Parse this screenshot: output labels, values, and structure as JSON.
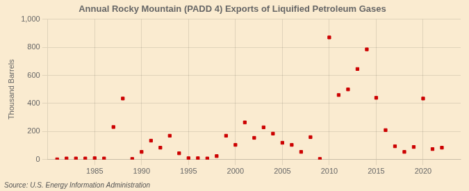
{
  "chart_data": {
    "type": "scatter",
    "title": "Annual Rocky Mountain (PADD 4) Exports of Liquified Petroleum Gases",
    "ylabel": "Thousand Barrels",
    "annotations": [
      "Source: U.S. Energy Information Administration"
    ],
    "x": [
      1981,
      1982,
      1983,
      1984,
      1985,
      1986,
      1987,
      1988,
      1989,
      1990,
      1991,
      1992,
      1993,
      1994,
      1995,
      1996,
      1997,
      1998,
      1999,
      2000,
      2001,
      2002,
      2003,
      2004,
      2005,
      2006,
      2007,
      2008,
      2009,
      2010,
      2011,
      2012,
      2013,
      2014,
      2015,
      2016,
      2017,
      2018,
      2019,
      2020,
      2021,
      2022
    ],
    "values": [
      2,
      8,
      8,
      8,
      10,
      8,
      232,
      435,
      5,
      55,
      135,
      85,
      170,
      45,
      10,
      10,
      8,
      25,
      170,
      105,
      265,
      155,
      230,
      185,
      120,
      105,
      55,
      160,
      5,
      870,
      460,
      500,
      645,
      785,
      440,
      210,
      95,
      55,
      90,
      435,
      75,
      85
    ],
    "color": "#cc0000",
    "marker": "square",
    "xlim": [
      1980,
      2024
    ],
    "xticks": [
      1985,
      1990,
      1995,
      2000,
      2005,
      2010,
      2015,
      2020
    ],
    "ylim": [
      0,
      1000
    ],
    "yticks": [
      0,
      200,
      400,
      600,
      800,
      {
        "value": 1000,
        "label": "1,000"
      }
    ],
    "grid": true
  }
}
